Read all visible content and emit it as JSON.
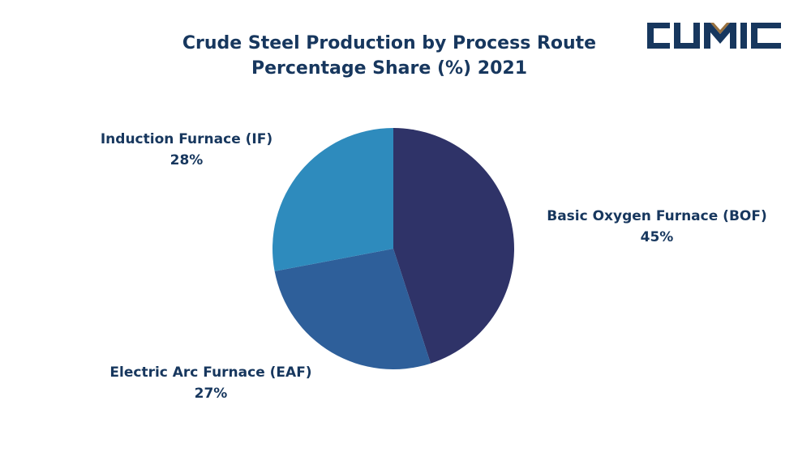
{
  "chart_data": {
    "type": "pie",
    "title": "Crude Steel Production by Process Route",
    "subtitle": "Percentage Share (%) 2021",
    "slices": [
      {
        "name": "Basic Oxygen Furnace (BOF)",
        "value": 45,
        "label": "45%",
        "color": "#2f3368"
      },
      {
        "name": "Electric Arc Furnace (EAF)",
        "value": 27,
        "label": "27%",
        "color": "#2e5f9a"
      },
      {
        "name": "Induction Furnace (IF)",
        "value": 28,
        "label": "28%",
        "color": "#2e8bbd"
      }
    ],
    "start_angle": "top",
    "direction": "clockwise"
  },
  "logo": {
    "text": "CUMIC",
    "color": "#17375e",
    "accent": "#8a6a3a"
  }
}
